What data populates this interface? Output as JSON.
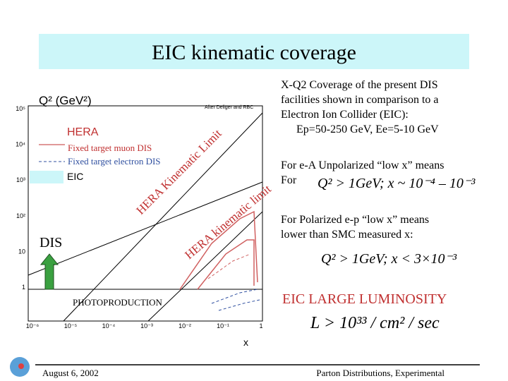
{
  "title": "EIC kinematic coverage",
  "plot": {
    "y_label": "Q² (GeV²)",
    "credit": "After Deliger and RBC",
    "legend": {
      "hera": "HERA",
      "muon": "Fixed target muon DIS",
      "electron": "Fixed target electron DIS",
      "eic": "EIC"
    },
    "limit_upper": "HERA Kinematic Limit",
    "limit_lower": "HERA kinematic limit",
    "dis": "DIS",
    "photoproduction": "PHOTOPRODUCTION",
    "x_label": "x",
    "y_ticks": [
      "10⁵",
      "10⁴",
      "10³",
      "10²",
      "10",
      "1"
    ],
    "x_ticks": [
      "10⁻⁶",
      "10⁻⁵",
      "10⁻⁴",
      "10⁻³",
      "10⁻²",
      "10⁻¹",
      "1"
    ]
  },
  "notes": {
    "coverage": [
      "X-Q2 Coverage of the present DIS",
      "facilities shown in comparison to a",
      "Electron Ion Collider (EIC):",
      "Ep=50-250 GeV, Ee=5-10 GeV"
    ],
    "ea": [
      "For e-A Unpolarized “low x” means",
      "For"
    ],
    "ea_formula": "Q² > 1GeV; x ~ 10⁻⁴ – 10⁻³",
    "ep": [
      "For Polarized e-p “low x” means",
      "lower than SMC measured x:"
    ],
    "ep_formula": "Q² > 1GeV; x < 3×10⁻³",
    "lumi": "EIC LARGE LUMINOSITY",
    "lumi_formula": "L > 10³³ / cm² / sec"
  },
  "footer": {
    "date": "August  6, 2002",
    "topic": "Parton Distributions, Experimental"
  }
}
